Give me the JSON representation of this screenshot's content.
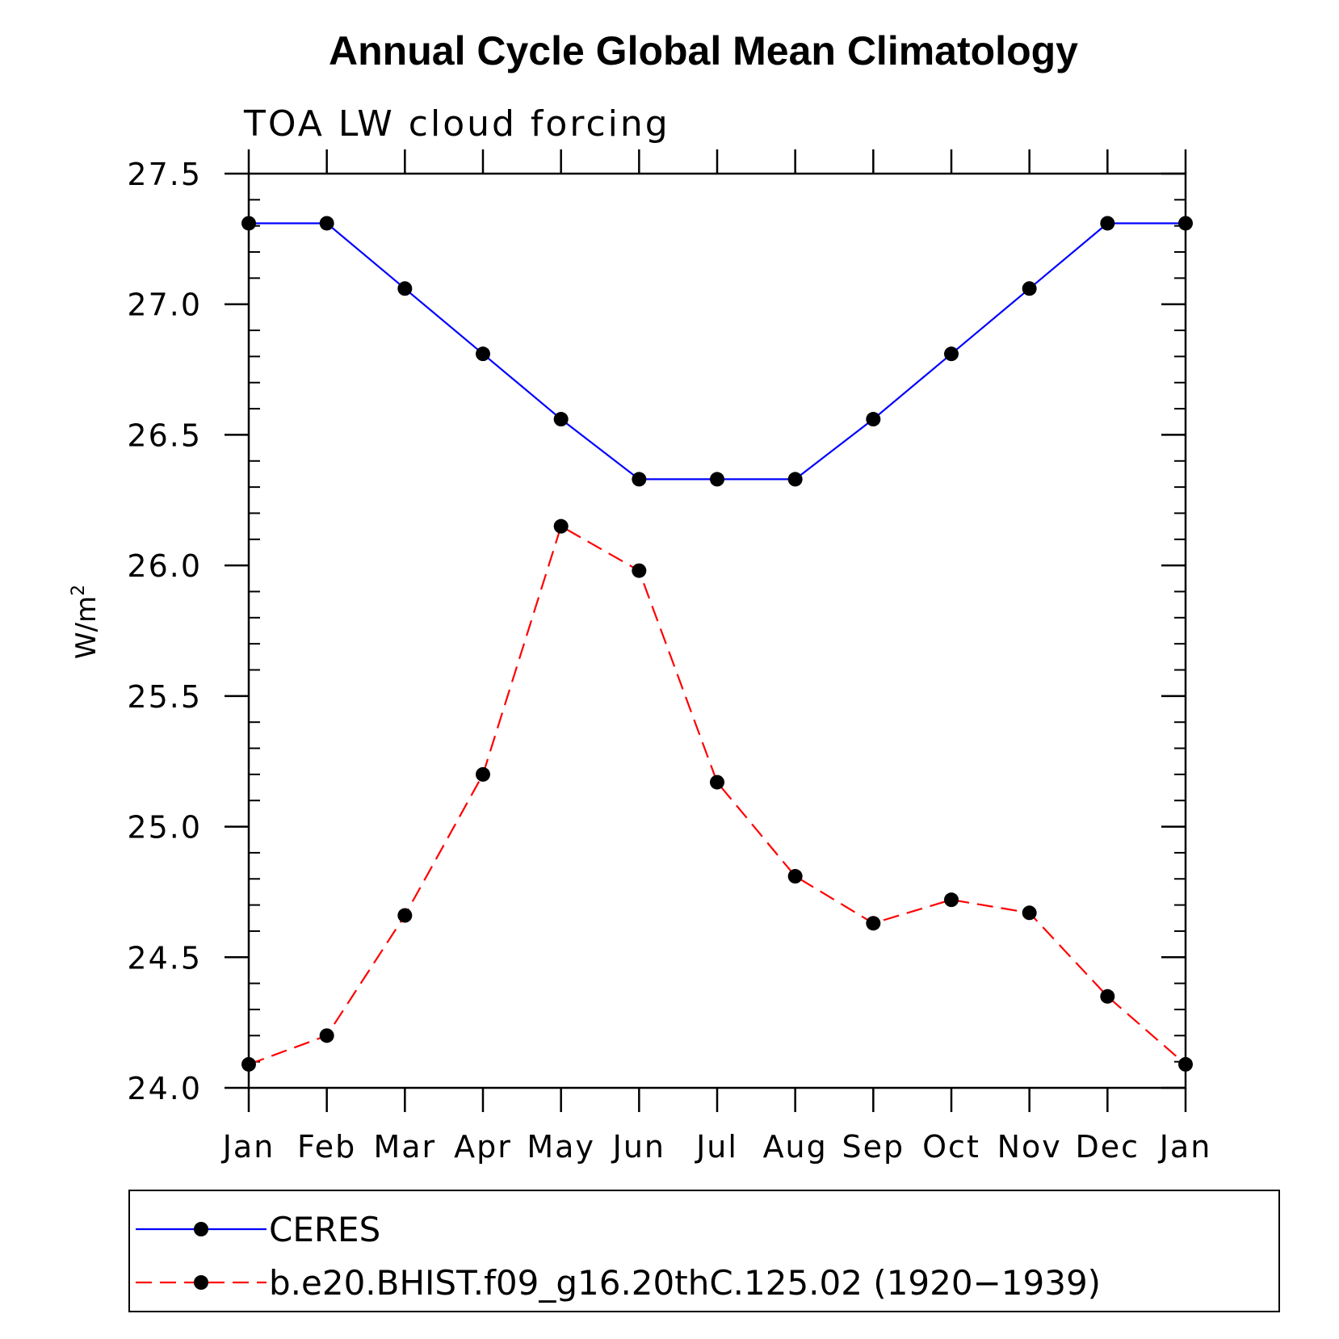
{
  "chart_data": {
    "type": "line",
    "title": "Annual Cycle Global Mean Climatology",
    "subtitle": "TOA LW cloud forcing",
    "xlabel": "",
    "ylabel": "W/m",
    "ylabel_superscript": "2",
    "categories": [
      "Jan",
      "Feb",
      "Mar",
      "Apr",
      "May",
      "Jun",
      "Jul",
      "Aug",
      "Sep",
      "Oct",
      "Nov",
      "Dec",
      "Jan"
    ],
    "ylim": [
      24.0,
      27.5
    ],
    "yticks": [
      24.0,
      24.5,
      25.0,
      25.5,
      26.0,
      26.5,
      27.0,
      27.5
    ],
    "ytick_labels": [
      "24.0",
      "24.5",
      "25.0",
      "25.5",
      "26.0",
      "26.5",
      "27.0",
      "27.5"
    ],
    "ytick_minor_step": 0.1,
    "grid": false,
    "legend_position": "bottom",
    "series": [
      {
        "name": "CERES",
        "color": "#0000ff",
        "line_style": "solid",
        "marker": "filled-circle",
        "values": [
          27.31,
          27.31,
          27.06,
          26.81,
          26.56,
          26.33,
          26.33,
          26.33,
          26.56,
          26.81,
          27.06,
          27.31,
          27.31
        ]
      },
      {
        "name": "b.e20.BHIST.f09_g16.20thC.125.02 (1920−1939)",
        "color": "#ff0000",
        "line_style": "dashed",
        "marker": "filled-circle",
        "values": [
          24.09,
          24.2,
          24.66,
          25.2,
          26.15,
          25.98,
          25.17,
          24.81,
          24.63,
          24.72,
          24.67,
          24.35,
          24.09
        ]
      }
    ]
  }
}
